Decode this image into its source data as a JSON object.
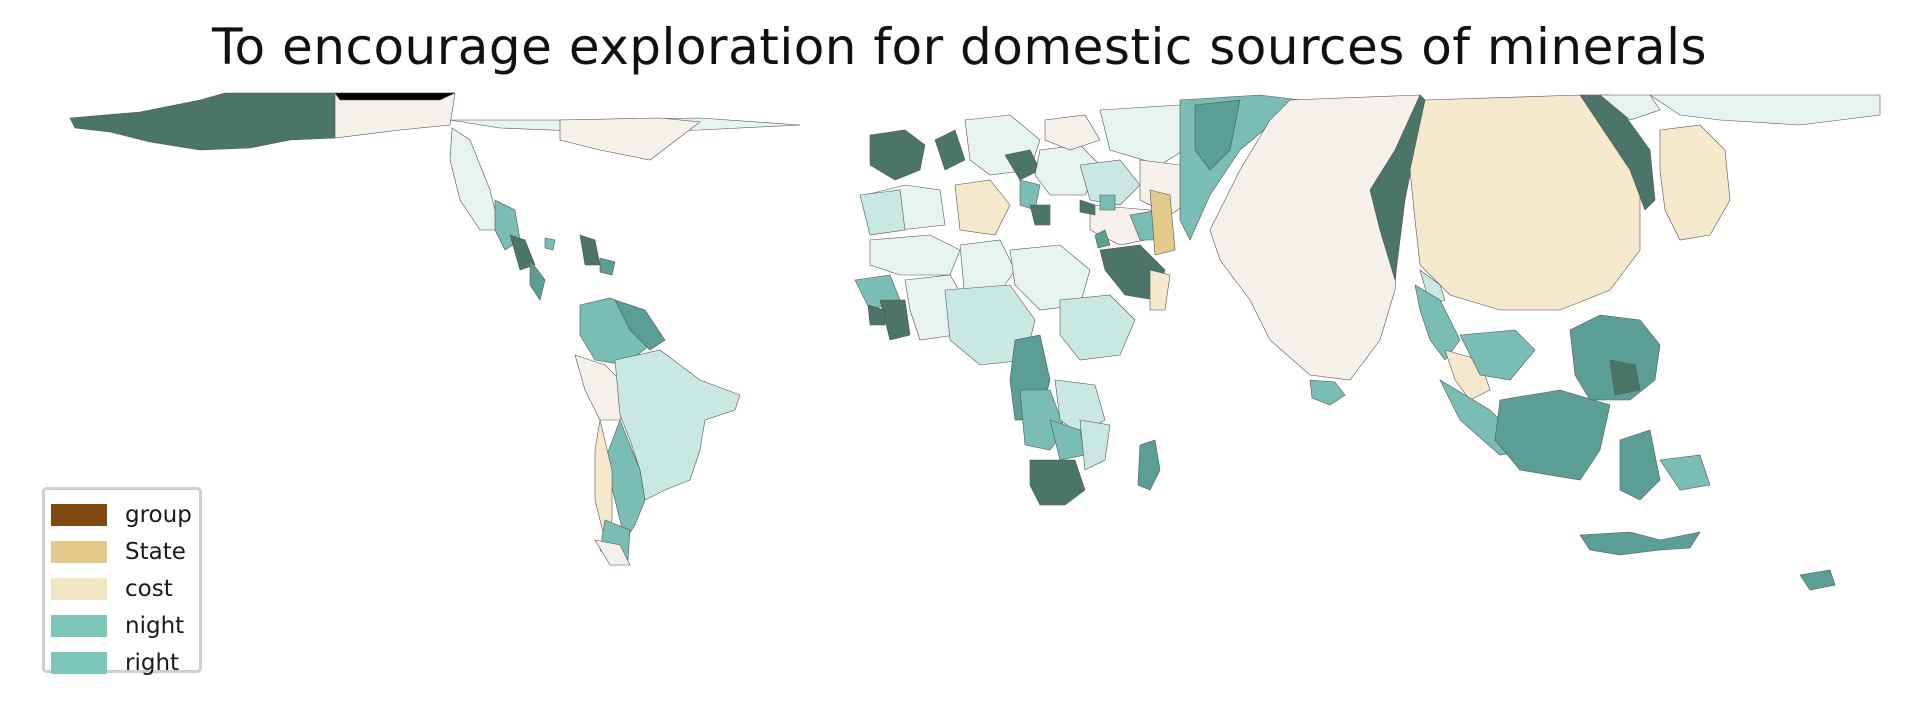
{
  "title": "To encourage exploration for domestic sources of minerals",
  "legend": {
    "items": [
      {
        "label": "group",
        "color": "#7f4a0e"
      },
      {
        "label": "State",
        "color": "#e3c98a"
      },
      {
        "label": "cost",
        "color": "#f3e6c3"
      },
      {
        "label": "night",
        "color": "#7ec8bb"
      },
      {
        "label": "right",
        "color": "#7ec8bb"
      }
    ]
  },
  "map": {
    "type": "cartogram",
    "colors": {
      "dark_teal": "#4a7568",
      "mid_teal": "#5a9e96",
      "light_teal": "#79bdb4",
      "pale_teal": "#c9e8e2",
      "faint_teal": "#e7f3f0",
      "beige": "#f5f1ea",
      "wheat": "#f5e8cc",
      "black": "#000000"
    }
  }
}
